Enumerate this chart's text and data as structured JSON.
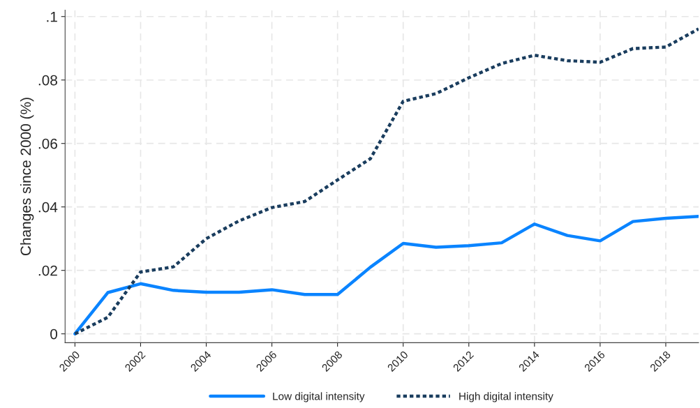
{
  "chart_data": {
    "type": "line",
    "ylabel": "Changes since 2000 (%)",
    "x": [
      2000,
      2001,
      2002,
      2003,
      2004,
      2005,
      2006,
      2007,
      2008,
      2009,
      2010,
      2011,
      2012,
      2013,
      2014,
      2015,
      2016,
      2017,
      2018,
      2019
    ],
    "series": [
      {
        "name": "Low digital intensity",
        "color": "#0a84ff",
        "line_style": "solid",
        "values": [
          0,
          0.013,
          0.0158,
          0.0137,
          0.0131,
          0.0131,
          0.0139,
          0.0124,
          0.0124,
          0.021,
          0.0285,
          0.0273,
          0.0278,
          0.0287,
          0.0346,
          0.031,
          0.0293,
          0.0354,
          0.0364,
          0.037
        ]
      },
      {
        "name": "High digital intensity",
        "color": "#1a3d5e",
        "line_style": "dotted",
        "values": [
          0,
          0.0052,
          0.0195,
          0.0211,
          0.03,
          0.0356,
          0.0398,
          0.0417,
          0.0485,
          0.0552,
          0.0733,
          0.0757,
          0.0807,
          0.0852,
          0.0878,
          0.0861,
          0.0856,
          0.0899,
          0.0904,
          0.0961
        ]
      }
    ],
    "xlim": [
      1999.7,
      2019
    ],
    "ylim": [
      -0.0028,
      0.102
    ],
    "xticks": [
      2000,
      2002,
      2004,
      2006,
      2008,
      2010,
      2012,
      2014,
      2016,
      2018
    ],
    "yticks": [
      0,
      {
        "value": 0.02,
        "label": ".02"
      },
      {
        "value": 0.04,
        "label": ".04"
      },
      {
        "value": 0.06,
        "label": ".06"
      },
      {
        "value": 0.08,
        "label": ".08"
      },
      {
        "value": 0.1,
        "label": ".1"
      }
    ],
    "grid": true,
    "legend": "bottom",
    "marker": "none"
  }
}
